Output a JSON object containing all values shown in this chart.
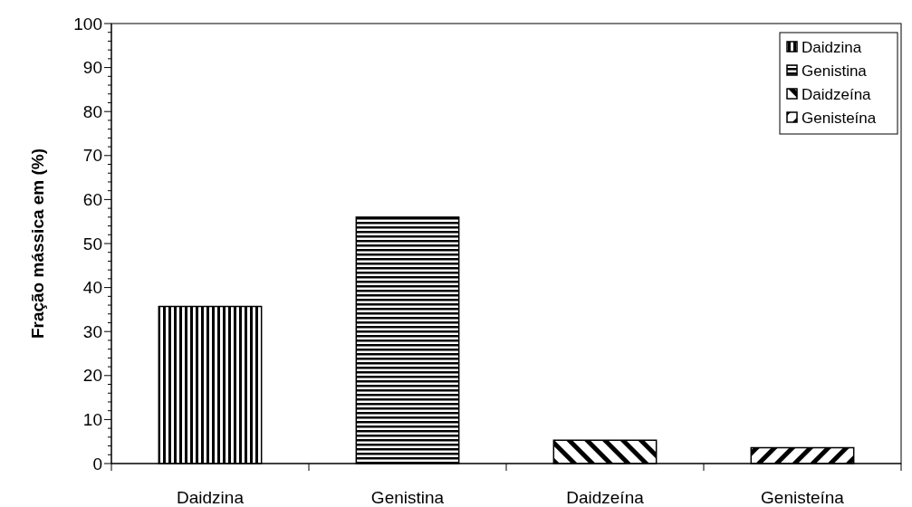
{
  "chart_data": {
    "type": "bar",
    "ylabel": "Fração mássica em (%)",
    "categories": [
      "Daidzina",
      "Genistina",
      "Daidzeína",
      "Genisteína"
    ],
    "series": [
      {
        "name": "Daidzina",
        "color": "#000000",
        "values": [
          35.7,
          null,
          null,
          null
        ]
      },
      {
        "name": "Genistina",
        "color": "#000000",
        "values": [
          null,
          56,
          null,
          null
        ]
      },
      {
        "name": "Daidzeína",
        "color": "#000000",
        "values": [
          null,
          null,
          5.3,
          null
        ]
      },
      {
        "name": "Genisteína",
        "color": "#000000",
        "values": [
          null,
          null,
          null,
          3.6
        ]
      }
    ],
    "ylim": [
      0,
      100
    ],
    "yticks": [
      0,
      {
        "value": 2,
        "label": null
      },
      {
        "value": 4,
        "label": null
      },
      {
        "value": 6,
        "label": null
      },
      {
        "value": 8,
        "label": null
      },
      10,
      {
        "value": 12,
        "label": null
      },
      {
        "value": 14,
        "label": null
      },
      {
        "value": 16,
        "label": null
      },
      {
        "value": 18,
        "label": null
      },
      20,
      {
        "value": 22,
        "label": null
      },
      {
        "value": 24,
        "label": null
      },
      {
        "value": 26,
        "label": null
      },
      {
        "value": 28,
        "label": null
      },
      30,
      {
        "value": 32,
        "label": null
      },
      {
        "value": 34,
        "label": null
      },
      {
        "value": 36,
        "label": null
      },
      {
        "value": 38,
        "label": null
      },
      40,
      {
        "value": 42,
        "label": null
      },
      {
        "value": 44,
        "label": null
      },
      {
        "value": 46,
        "label": null
      },
      {
        "value": 48,
        "label": null
      },
      50,
      {
        "value": 52,
        "label": null
      },
      {
        "value": 54,
        "label": null
      },
      {
        "value": 56,
        "label": null
      },
      {
        "value": 58,
        "label": null
      },
      60,
      {
        "value": 62,
        "label": null
      },
      {
        "value": 64,
        "label": null
      },
      {
        "value": 66,
        "label": null
      },
      {
        "value": 68,
        "label": null
      },
      70,
      {
        "value": 72,
        "label": null
      },
      {
        "value": 74,
        "label": null
      },
      {
        "value": 76,
        "label": null
      },
      {
        "value": 78,
        "label": null
      },
      80,
      {
        "value": 82,
        "label": null
      },
      {
        "value": 84,
        "label": null
      },
      {
        "value": 86,
        "label": null
      },
      {
        "value": 88,
        "label": null
      },
      90,
      {
        "value": 92,
        "label": null
      },
      {
        "value": 94,
        "label": null
      },
      {
        "value": 96,
        "label": null
      },
      {
        "value": 98,
        "label": null
      },
      100
    ],
    "legend": "top right"
  }
}
